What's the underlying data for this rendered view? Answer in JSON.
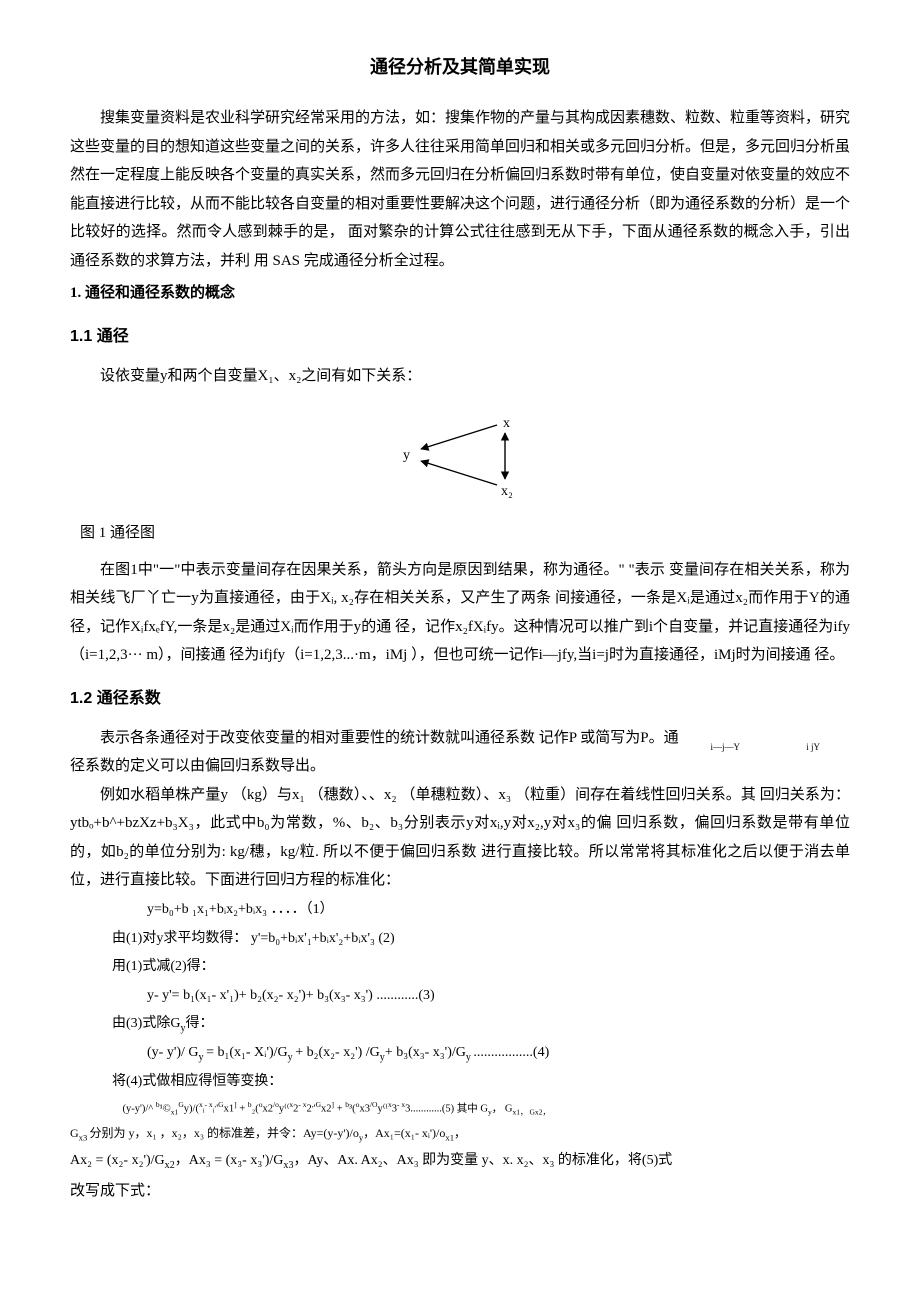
{
  "title": "通径分析及其简单实现",
  "intro_para": "搜集变量资料是农业科学研究经常采用的方法，如：搜集作物的产量与其构成因素穗数、粒数、粒重等资料，研究这些变量的目的想知道这些变量之间的关系，许多人往往采用简单回归和相关或多元回归分析。但是，多元回归分析虽然在一定程度上能反映各个变量的真实关系，然而多元回归在分析偏回归系数时带有单位，使自变量对依变量的效应不能直接进行比较，从而不能比较各自变量的相对重要性要解决这个问题，进行通径分析（即为通径系数的分析）是一个比较好的选择。然而令人感到棘手的是，   面对繁杂的计算公式往往感到无从下手，下面从通径系数的概念入手，引出通径系数的求算方法，并利 用 SAS 完成通径分析全过程。",
  "sec1_title": "1.   通径和通径系数的概念",
  "sec11_title": "1.1  通径",
  "sec11_para1": "设依变量y和两个自变量X₁、x₂之间有如下关系：",
  "fig_caption": "图 1 通径图",
  "sec11_para2": "在图1中\"一\"中表示变量间存在因果关系，箭头方向是原因到结果，称为通径。\"  \"表示 变量间存在相关关系，称为相关线飞厂丫亡一y为直接通径，由于Xᵢ, x₂存在相关关系，又产生了两条 间接通径，一条是Xᵢ是通过x₂而作用于Y的通径，记作XᵢfxₑfY,一条是x₂是通过Xᵢ而作用于y的通 径，记作x₂fXᵢfy。这种情况可以推广到i个自变量，并记直接通径为ify （i=1,2,3··· m），间接通 径为ifjfy（i=1,2,3...·m，iMj ），但也可统一记作i—jfy,当i=j时为直接通径，iMj时为间接通 径。",
  "sec12_title": "1.2  通径系数",
  "sec12_para1_a": "表示各条通径对于改变依变量的相对重要性的统计数就叫通径系数 记作P       或简写为P。通",
  "sec12_para1_sub1": "i—j—Y",
  "sec12_para1_sub2": "i jY",
  "sec12_para1_b": "径系数的定义可以由偏回归系数导出。",
  "sec12_para2": "例如水稻单株产量y （kg）与x₁ （穗数）、、x₂  （单穗粒数）、x₃ （粒重）间存在着线性回归关系。其 回归关系为：ytbₒ+b^+bzXz+b₃X₃，此式中b₀为常数，%、b₂、b₃分别表示y对xᵢ,y对x₂,y对x₃的偏 回归系数，偏回归系数是带有单位的，如b₂的单位分别为: kg/穗，kg/粒. 所以不便于偏回归系数 进行直接比较。所以常常将其标准化之后以便于消去单位，进行直接比较。下面进行回归方程的标准化：",
  "eq1": "y=b₀+b ₁x₁+bᵢx₂+bᵢx₃  ．．．．（1）",
  "eq2_intro": "由(1)对y求平均数得：   y'=b₀+bᵢx'₁+bᵢx'₂+bᵢx'₃       (2)",
  "eq3_intro": "用(1)式减(2)得：",
  "eq3": "y- y'= b₁(x₁- x'₁)+ b₂(x₂- x₂')+ b₃(x₃- x₃') ............(3)",
  "eq4_intro": "由(3)式除G<sub>y</sub>得：",
  "eq4": "(y- y')/ G<sub>y </sub>= b₁(x₁- Xᵢ')/G<sub>y </sub>+ b₂(x₂- x₂') /G<sub>y</sub>+ b₃(x₃- x₃')/G<sub>y </sub>.................(4)",
  "eq5_intro": "将(4)式做相应得恒等变换：",
  "eq5_line": "(y-y')/^ <sup>b</sup>¹©<sub>x1</sub><sup>G</sup>y)/(<sup>x</sup>ᵢ<sup>- x</sup>ᵢ<sup>,</sup>'<sup>G</sup>x1<sup>]</sup>   +   <sup>b</sup>₂(<sup>o</sup>x2<sup>/o</sup>y⁽⁽<sup>x</sup>2<sup>- x</sup>2<sup>,</sup>'<sup>G</sup>x2<sup>]</sup>   +   <sup>b</sup>³(<sup>o</sup>x3<sup>/O</sup>y⁽⁽<sup>x</sup>3<sup>- x</sup>3............(5) 其中  G<sub>y</sub>，                              G<sub>x1，  G</sub><sub>x2，",
  "eq5_tail": "G</sub><sub>x3                  </sub>分别为  y，x₁  ，x₂，x₃                               的标准差，并令：Ay=(y-y')/o<sub>y</sub>，Ax₁=(x₁- xᵢ')/o<sub>x1</sub>，",
  "sec12_para3": "Ax₂ = (x₂- x₂')/G<sub>x2</sub>，Ax₃ = (x₃- x₃')/G<sub>x3</sub>，Ay、Ax. Ax₂、Ax₃ 即为变量  y、x. x₂、x₃ 的标准化，将(5)式",
  "sec12_para4": "改写成下式：",
  "diagram": {
    "y_label": "y",
    "x1_label": "x",
    "x2_label": "x₂",
    "stroke": "#000000",
    "bg": "#ffffff",
    "width": 170,
    "height": 100
  }
}
